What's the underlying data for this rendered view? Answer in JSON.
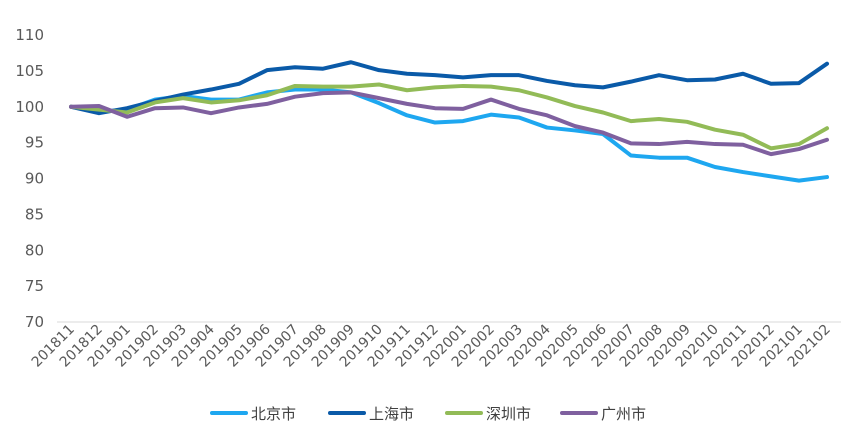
{
  "chart_data": {
    "type": "line",
    "title": "",
    "xlabel": "",
    "ylabel": "",
    "ylim": [
      70,
      110
    ],
    "yticks": [
      70,
      75,
      80,
      85,
      90,
      95,
      100,
      105,
      110
    ],
    "grid": false,
    "legend_position": "bottom",
    "categories": [
      "201811",
      "201812",
      "201901",
      "201902",
      "201903",
      "201904",
      "201905",
      "201906",
      "201907",
      "201908",
      "201909",
      "201910",
      "201911",
      "201912",
      "202001",
      "202002",
      "202003",
      "202004",
      "202005",
      "202006",
      "202007",
      "202008",
      "202009",
      "202010",
      "202011",
      "202012",
      "202101",
      "202102"
    ],
    "series": [
      {
        "name": "北京市",
        "color": "#1ea7f0",
        "values": [
          100,
          99.3,
          99.6,
          101.0,
          101.5,
          101.0,
          101.0,
          102.0,
          102.4,
          102.4,
          102.0,
          100.5,
          98.8,
          97.8,
          98.0,
          98.9,
          98.5,
          97.1,
          96.7,
          96.2,
          93.2,
          92.9,
          92.9,
          91.6,
          90.9,
          90.3,
          89.7,
          90.2
        ]
      },
      {
        "name": "上海市",
        "color": "#0a5aa8",
        "values": [
          100,
          99.1,
          99.8,
          100.8,
          101.7,
          102.4,
          103.2,
          105.1,
          105.5,
          105.3,
          106.2,
          105.1,
          104.6,
          104.4,
          104.1,
          104.4,
          104.4,
          103.6,
          103.0,
          102.7,
          103.5,
          104.4,
          103.7,
          103.8,
          104.6,
          103.2,
          103.3,
          106.0
        ]
      },
      {
        "name": "深圳市",
        "color": "#92bb57",
        "values": [
          100,
          99.6,
          99.2,
          100.6,
          101.2,
          100.6,
          100.9,
          101.6,
          102.9,
          102.8,
          102.8,
          103.1,
          102.3,
          102.7,
          102.9,
          102.8,
          102.3,
          101.3,
          100.1,
          99.2,
          98.0,
          98.3,
          97.9,
          96.8,
          96.1,
          94.2,
          94.8,
          97.0
        ]
      },
      {
        "name": "广州市",
        "color": "#7f609f",
        "values": [
          100,
          100.1,
          98.6,
          99.8,
          99.9,
          99.1,
          99.9,
          100.4,
          101.4,
          101.9,
          102.0,
          101.2,
          100.4,
          99.8,
          99.7,
          101.0,
          99.7,
          98.8,
          97.3,
          96.4,
          94.9,
          94.8,
          95.1,
          94.8,
          94.7,
          93.4,
          94.1,
          95.4
        ]
      }
    ]
  }
}
